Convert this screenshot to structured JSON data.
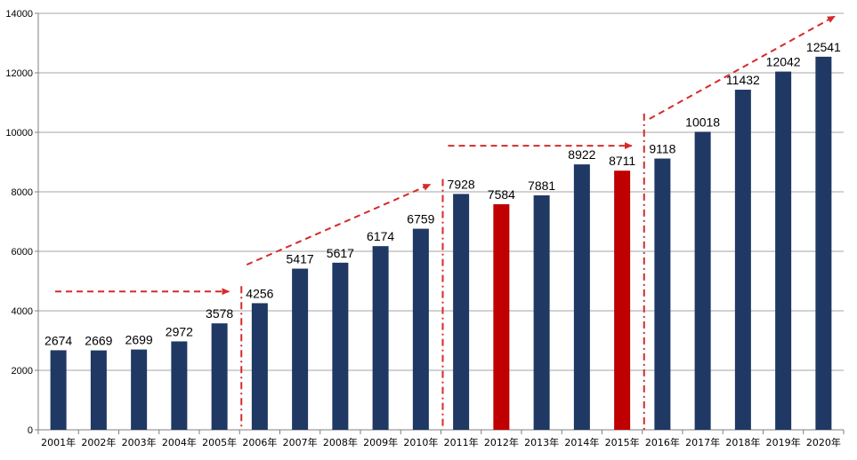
{
  "chart_data": {
    "type": "bar",
    "title": "",
    "xlabel": "",
    "ylabel": "",
    "ylim": [
      0,
      14000
    ],
    "yticks": [
      0,
      2000,
      4000,
      6000,
      8000,
      10000,
      12000,
      14000
    ],
    "grid": true,
    "categories": [
      "2001年",
      "2002年",
      "2003年",
      "2004年",
      "2005年",
      "2006年",
      "2007年",
      "2008年",
      "2009年",
      "2010年",
      "2011年",
      "2012年",
      "2013年",
      "2014年",
      "2015年",
      "2016年",
      "2017年",
      "2018年",
      "2019年",
      "2020年"
    ],
    "values": [
      2674,
      2669,
      2699,
      2972,
      3578,
      4256,
      5417,
      5617,
      6174,
      6759,
      7928,
      7584,
      7881,
      8922,
      8711,
      9118,
      10018,
      11432,
      12042,
      12541
    ],
    "highlighted_categories": [
      "2012年",
      "2015年"
    ],
    "colors": {
      "bar": "#1f3864",
      "highlight": "#c00000",
      "annotation": "#d62a2a",
      "grid": "#a6a6a6",
      "axis": "#7f7f7f"
    },
    "annotations": {
      "period_dividers_after": [
        "2005年",
        "2010年",
        "2015年"
      ],
      "trend_arrows": [
        {
          "from": [
            "2000年",
            4650
          ],
          "to": [
            "2005年",
            4650
          ]
        },
        {
          "from": [
            "2005年",
            5550
          ],
          "to": [
            "2010年",
            8250
          ]
        },
        {
          "from": [
            "2010年",
            9550
          ],
          "to": [
            "2015年",
            9550
          ]
        },
        {
          "from": [
            "2015年",
            10450
          ],
          "to": [
            "2020年",
            13900
          ]
        }
      ]
    }
  }
}
